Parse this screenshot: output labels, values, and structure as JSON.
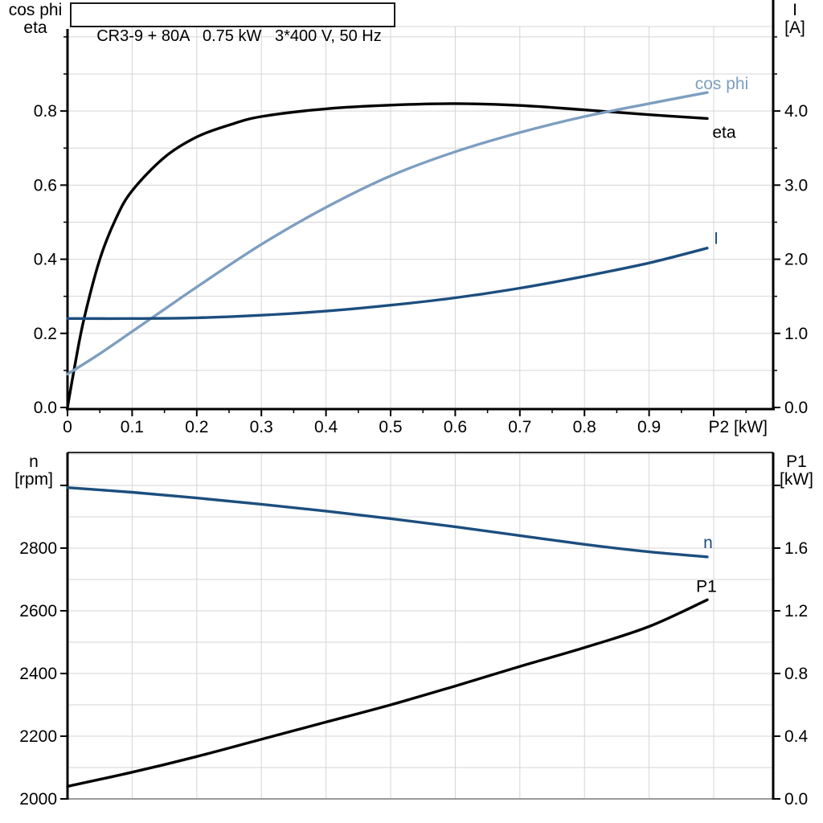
{
  "title": "CR3-9 + 80A   0.75 kW   3*400 V, 50 Hz",
  "axis_corner_titles": {
    "top_left": [
      "cos phi",
      "eta"
    ],
    "top_right": [
      "I",
      "[A]"
    ],
    "bottom_left": [
      "n",
      "[rpm]"
    ],
    "bottom_right": [
      "P1",
      "[kW]"
    ]
  },
  "colors": {
    "black": "#000000",
    "light_blue": "#7D9EC0",
    "dark_blue": "#1C4E7E",
    "grid": "#D5D5D5",
    "grid_dark": "#9A9A9A",
    "frame_dark": "#2E2E2E"
  },
  "chart_data": [
    {
      "id": "top",
      "type": "line",
      "title": "Motor electrical curves vs shaft power",
      "x_axis": {
        "title": "P2 [kW]",
        "range": [
          0,
          1.092
        ],
        "grid": [
          0.1,
          0.2,
          0.3,
          0.4,
          0.5,
          0.6,
          0.7,
          0.8,
          0.9,
          1.0
        ],
        "major_ticks": [
          {
            "v": 0,
            "label": "0"
          },
          {
            "v": 0.1,
            "label": "0.1"
          },
          {
            "v": 0.2,
            "label": "0.2"
          },
          {
            "v": 0.3,
            "label": "0.3"
          },
          {
            "v": 0.4,
            "label": "0.4"
          },
          {
            "v": 0.5,
            "label": "0.5"
          },
          {
            "v": 0.6,
            "label": "0.6"
          },
          {
            "v": 0.7,
            "label": "0.7"
          },
          {
            "v": 0.8,
            "label": "0.8"
          },
          {
            "v": 0.9,
            "label": "0.9"
          },
          {
            "v": 1.0,
            "label": ""
          }
        ],
        "minor_ticks": [
          0.05,
          0.15,
          0.25,
          0.35,
          0.45,
          0.55,
          0.65,
          0.75,
          0.85,
          0.95,
          1.05
        ]
      },
      "y_left": {
        "name": "cos phi / eta",
        "range": [
          0,
          1.028
        ],
        "grid": [
          0.1,
          0.2,
          0.3,
          0.4,
          0.5,
          0.6,
          0.7,
          0.8,
          0.9,
          1.0
        ],
        "major_ticks": [
          {
            "v": 0,
            "label": "0.0"
          },
          {
            "v": 0.2,
            "label": "0.2"
          },
          {
            "v": 0.4,
            "label": "0.4"
          },
          {
            "v": 0.6,
            "label": "0.6"
          },
          {
            "v": 0.8,
            "label": "0.8"
          }
        ],
        "minor_ticks": [
          0.1,
          0.3,
          0.5,
          0.7,
          0.9,
          1.0
        ]
      },
      "y_right": {
        "name": "I [A]",
        "range": [
          0,
          5.14
        ],
        "major_ticks": [
          {
            "v": 0,
            "label": "0.0"
          },
          {
            "v": 1,
            "label": "1.0"
          },
          {
            "v": 2,
            "label": "2.0"
          },
          {
            "v": 3,
            "label": "3.0"
          },
          {
            "v": 4,
            "label": "4.0"
          }
        ],
        "minor_ticks": [
          0.5,
          1.5,
          2.5,
          3.5,
          4.5,
          5.0
        ]
      },
      "series": [
        {
          "name": "eta",
          "label": "eta",
          "axis": "left",
          "color": "#000000",
          "points": [
            [
              0,
              0
            ],
            [
              0.01,
              0.1
            ],
            [
              0.025,
              0.235
            ],
            [
              0.05,
              0.4
            ],
            [
              0.075,
              0.51
            ],
            [
              0.1,
              0.585
            ],
            [
              0.15,
              0.675
            ],
            [
              0.2,
              0.73
            ],
            [
              0.25,
              0.762
            ],
            [
              0.3,
              0.785
            ],
            [
              0.4,
              0.806
            ],
            [
              0.5,
              0.816
            ],
            [
              0.6,
              0.82
            ],
            [
              0.7,
              0.815
            ],
            [
              0.8,
              0.803
            ],
            [
              0.9,
              0.79
            ],
            [
              0.99,
              0.78
            ]
          ]
        },
        {
          "name": "cos-phi",
          "label": "cos phi",
          "axis": "left",
          "color": "#7D9EC0",
          "points": [
            [
              0,
              0.09
            ],
            [
              0.05,
              0.145
            ],
            [
              0.1,
              0.205
            ],
            [
              0.15,
              0.265
            ],
            [
              0.2,
              0.325
            ],
            [
              0.3,
              0.44
            ],
            [
              0.4,
              0.54
            ],
            [
              0.5,
              0.625
            ],
            [
              0.6,
              0.69
            ],
            [
              0.7,
              0.742
            ],
            [
              0.8,
              0.785
            ],
            [
              0.9,
              0.82
            ],
            [
              0.99,
              0.85
            ]
          ]
        },
        {
          "name": "current",
          "label": "I",
          "axis": "right",
          "color": "#1C4E7E",
          "points": [
            [
              0,
              1.2
            ],
            [
              0.1,
              1.2
            ],
            [
              0.2,
              1.21
            ],
            [
              0.3,
              1.245
            ],
            [
              0.4,
              1.3
            ],
            [
              0.5,
              1.38
            ],
            [
              0.6,
              1.48
            ],
            [
              0.7,
              1.61
            ],
            [
              0.8,
              1.77
            ],
            [
              0.9,
              1.95
            ],
            [
              0.99,
              2.15
            ]
          ]
        }
      ]
    },
    {
      "id": "bottom",
      "type": "line",
      "title": "Speed and input power vs shaft power",
      "x_axis": {
        "title": "",
        "range": [
          0,
          1.092
        ],
        "grid": [
          0.1,
          0.2,
          0.3,
          0.4,
          0.5,
          0.6,
          0.7,
          0.8,
          0.9,
          1.0
        ],
        "major_ticks": [],
        "minor_ticks": []
      },
      "y_left": {
        "name": "n [rpm]",
        "range": [
          2000,
          3105
        ],
        "grid": [
          2100,
          2200,
          2300,
          2400,
          2500,
          2600,
          2700,
          2800,
          2900,
          3000,
          3100
        ],
        "grid_dark": [
          2000
        ],
        "major_ticks": [
          {
            "v": 2000,
            "label": "2000"
          },
          {
            "v": 2200,
            "label": "2200"
          },
          {
            "v": 2400,
            "label": "2400"
          },
          {
            "v": 2600,
            "label": "2600"
          },
          {
            "v": 2800,
            "label": "2800"
          },
          {
            "v": 3000,
            "label": ""
          }
        ],
        "minor_ticks": []
      },
      "y_right": {
        "name": "P1 [kW]",
        "range": [
          0,
          2.21
        ],
        "major_ticks": [
          {
            "v": 0,
            "label": "0.0"
          },
          {
            "v": 0.4,
            "label": "0.4"
          },
          {
            "v": 0.8,
            "label": "0.8"
          },
          {
            "v": 1.2,
            "label": "1.2"
          },
          {
            "v": 1.6,
            "label": "1.6"
          },
          {
            "v": 2.0,
            "label": ""
          }
        ],
        "minor_ticks": []
      },
      "series": [
        {
          "name": "speed",
          "label": "n",
          "axis": "left",
          "color": "#1C4E7E",
          "points": [
            [
              0,
              2993
            ],
            [
              0.1,
              2978
            ],
            [
              0.2,
              2960
            ],
            [
              0.3,
              2940
            ],
            [
              0.4,
              2918
            ],
            [
              0.5,
              2894
            ],
            [
              0.6,
              2868
            ],
            [
              0.7,
              2840
            ],
            [
              0.8,
              2812
            ],
            [
              0.9,
              2788
            ],
            [
              0.99,
              2772
            ]
          ]
        },
        {
          "name": "p1",
          "label": "P1",
          "axis": "right",
          "color": "#000000",
          "points": [
            [
              0,
              0.08
            ],
            [
              0.1,
              0.17
            ],
            [
              0.2,
              0.27
            ],
            [
              0.3,
              0.38
            ],
            [
              0.4,
              0.49
            ],
            [
              0.5,
              0.6
            ],
            [
              0.6,
              0.72
            ],
            [
              0.7,
              0.845
            ],
            [
              0.8,
              0.965
            ],
            [
              0.9,
              1.1
            ],
            [
              0.99,
              1.27
            ]
          ]
        }
      ]
    }
  ]
}
